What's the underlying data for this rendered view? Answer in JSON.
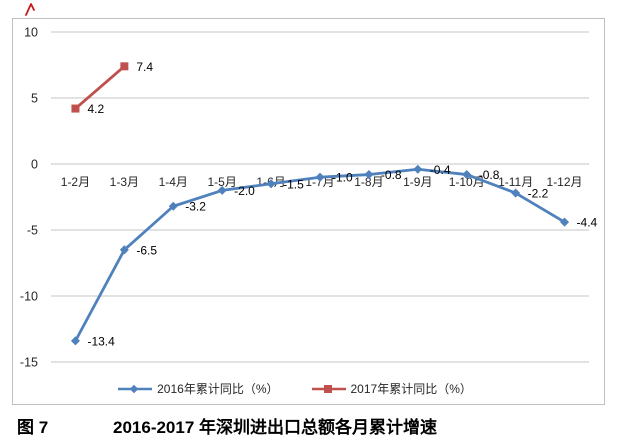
{
  "chart_data": {
    "type": "line",
    "figure_label": "图 7",
    "title": "2016-2017 年深圳进出口总额各月累计增速",
    "categories": [
      "1-2月",
      "1-3月",
      "1-4月",
      "1-5月",
      "1-6月",
      "1-7月",
      "1-8月",
      "1-9月",
      "1-10月",
      "1-11月",
      "1-12月"
    ],
    "series": [
      {
        "name": "2016年累计同比（%）",
        "color": "#4f81bd",
        "marker": "diamond",
        "values": [
          -13.4,
          -6.5,
          -3.2,
          -2.0,
          -1.5,
          -1.0,
          -0.8,
          -0.4,
          -0.8,
          -2.2,
          -4.4
        ]
      },
      {
        "name": "2017年累计同比（%）",
        "color": "#c0504d",
        "marker": "square",
        "values": [
          4.2,
          7.4,
          null,
          null,
          null,
          null,
          null,
          null,
          null,
          null,
          null
        ]
      }
    ],
    "ylim": [
      -15,
      10
    ],
    "yticks": [
      10,
      5,
      0,
      -5,
      -10,
      -15
    ],
    "grid": true,
    "legend_position": "bottom",
    "data_labels": true,
    "gridline_color": "#c6c6c6",
    "axis_text_color": "#262626",
    "data_label_color": "#000000",
    "frame_border_color": "#bfbfbf",
    "stray_mark_color": "#c00000"
  }
}
